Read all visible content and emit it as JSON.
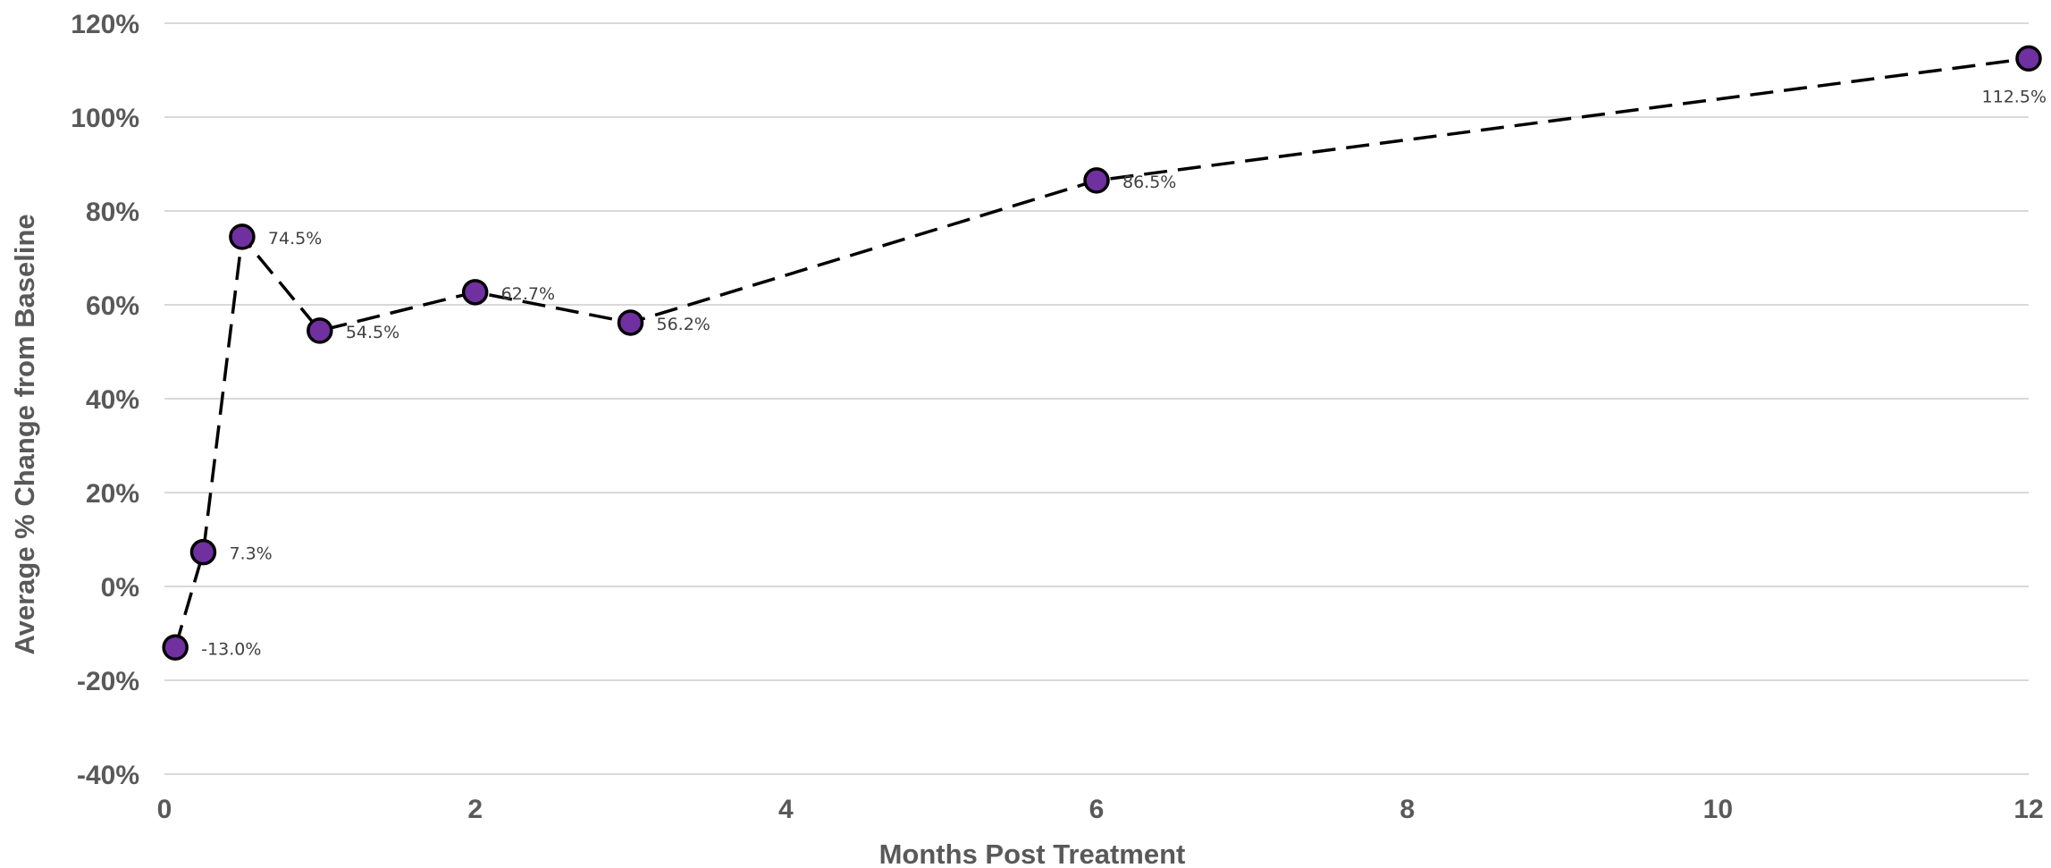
{
  "chart_data": {
    "type": "line",
    "title": "",
    "xlabel": "Months Post Treatment",
    "ylabel": "Average % Change from Baseline",
    "xlim": [
      0,
      12
    ],
    "ylim": [
      -40,
      120
    ],
    "x_ticks": [
      0,
      2,
      4,
      6,
      8,
      10,
      12
    ],
    "y_ticks": [
      -40,
      -20,
      0,
      20,
      40,
      60,
      80,
      100,
      120
    ],
    "y_tick_format": "percent",
    "grid": "horizontal",
    "legend": "none",
    "series": [
      {
        "line_style": "dashed",
        "line_color": "#000000",
        "marker_color": "#7030a0",
        "points": [
          {
            "x": 0.07,
            "y": -13.0,
            "label": "-13.0%"
          },
          {
            "x": 0.25,
            "y": 7.3,
            "label": "7.3%"
          },
          {
            "x": 0.5,
            "y": 74.5,
            "label": "74.5%"
          },
          {
            "x": 1,
            "y": 54.5,
            "label": "54.5%"
          },
          {
            "x": 2,
            "y": 62.7,
            "label": "62.7%"
          },
          {
            "x": 3,
            "y": 56.2,
            "label": "56.2%"
          },
          {
            "x": 6,
            "y": 86.5,
            "label": "86.5%"
          },
          {
            "x": 12,
            "y": 112.5,
            "label": "112.5%"
          }
        ]
      }
    ]
  }
}
